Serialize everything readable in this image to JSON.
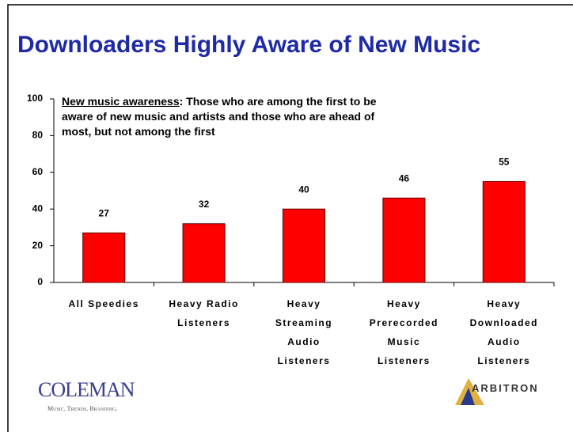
{
  "chart_data": {
    "type": "bar",
    "title": "Downloaders Highly Aware of New Music",
    "annotation": {
      "emphasis": "New music awareness",
      "text": ":  Those who are among the first to be aware of new music and artists and those who are ahead of most, but not among the first"
    },
    "categories": [
      "All Speedies",
      "Heavy Radio Listeners",
      "Heavy Streaming Audio Listeners",
      "Heavy Prerecorded Music Listeners",
      "Heavy Downloaded Audio Listeners"
    ],
    "values": [
      27,
      32,
      40,
      46,
      55
    ],
    "color": "#ff0000",
    "ylim": [
      0,
      100
    ],
    "yticks": [
      0,
      20,
      40,
      60,
      80,
      100
    ],
    "grid": false
  },
  "logos": {
    "left": "COLEMAN",
    "left_tagline": "Music. Trends. Branding.",
    "right": "ARBITRON"
  }
}
